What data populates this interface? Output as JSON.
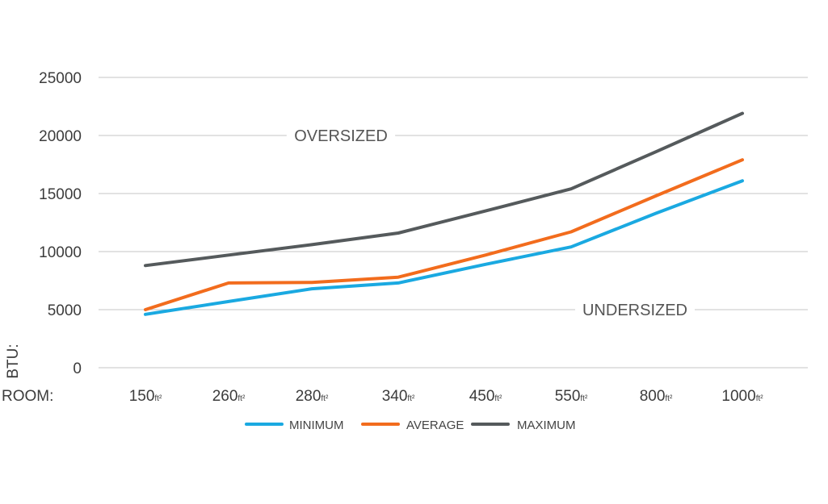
{
  "chart_data": {
    "type": "line",
    "title": "",
    "xlabel": "ROOM:",
    "ylabel": "BTU:",
    "x_unit": "ft²",
    "categories": [
      "150",
      "260",
      "280",
      "340",
      "450",
      "550",
      "800",
      "1000"
    ],
    "ylim": [
      0,
      25000
    ],
    "yticks": [
      "0",
      "5000",
      "10000",
      "15000",
      "20000",
      "25000"
    ],
    "grid": true,
    "legend_position": "bottom",
    "series": [
      {
        "name": "MINIMUM",
        "color": "#1aa9e1",
        "values": [
          4600,
          5700,
          6800,
          7300,
          8900,
          10400,
          13300,
          16100
        ]
      },
      {
        "name": "AVERAGE",
        "color": "#f26c1d",
        "values": [
          5000,
          7300,
          7350,
          7800,
          9700,
          11700,
          14800,
          17900
        ]
      },
      {
        "name": "MAXIMUM",
        "color": "#555a5c",
        "values": [
          8800,
          9700,
          10600,
          11600,
          13500,
          15400,
          18600,
          21900
        ]
      }
    ],
    "annotations": [
      {
        "text": "OVERSIZED",
        "y": 20000
      },
      {
        "text": "UNDERSIZED",
        "y": 5000
      }
    ]
  }
}
